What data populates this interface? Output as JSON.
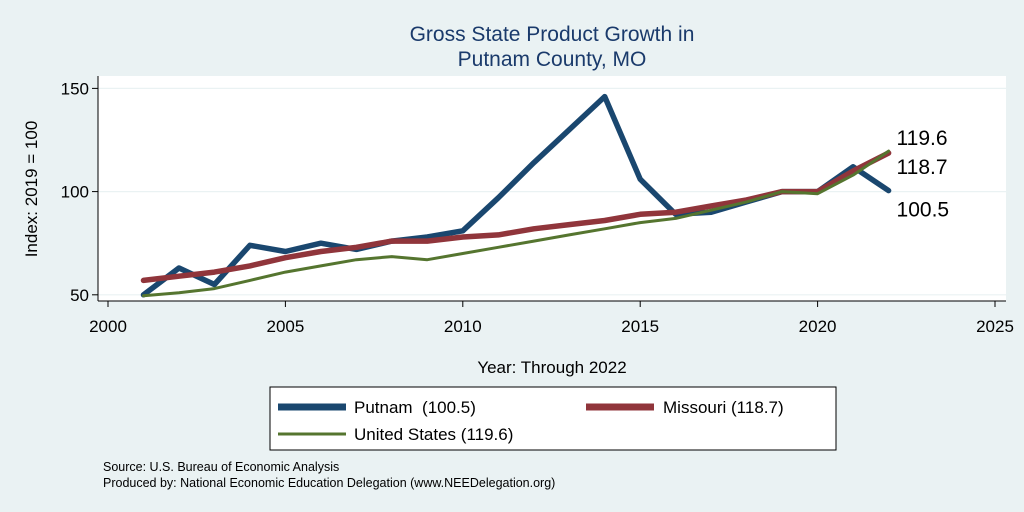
{
  "chart_data": {
    "type": "line",
    "title": "Gross State Product Growth in",
    "subtitle": "Putnam County, MO",
    "xlabel": "Year: Through 2022",
    "ylabel": "Index: 2019 = 100",
    "xlim": [
      2000,
      2025
    ],
    "ylim": [
      47,
      156
    ],
    "xticks": [
      2000,
      2005,
      2010,
      2015,
      2020,
      2025
    ],
    "yticks": [
      50,
      100,
      150
    ],
    "grid": true,
    "legend_position": "bottom",
    "x": [
      2001,
      2002,
      2003,
      2004,
      2005,
      2006,
      2007,
      2008,
      2009,
      2010,
      2011,
      2012,
      2013,
      2014,
      2015,
      2016,
      2017,
      2018,
      2019,
      2020,
      2021,
      2022
    ],
    "series": [
      {
        "name": "Putnam",
        "legend_label": "Putnam  (100.5)",
        "color": "#1a476f",
        "values": [
          50,
          63,
          55,
          74,
          71,
          75,
          72,
          76,
          78,
          81,
          97,
          114,
          130,
          146,
          106,
          89,
          90,
          95,
          100,
          100,
          112,
          100.5
        ],
        "end_label": "100.5"
      },
      {
        "name": "Missouri",
        "legend_label": "Missouri (118.7)",
        "color": "#90353b",
        "values": [
          57,
          59,
          61,
          64,
          68,
          71,
          73,
          76,
          76,
          78,
          79,
          82,
          84,
          86,
          89,
          90,
          93,
          96,
          100,
          100,
          110,
          118.7
        ],
        "end_label": "118.7"
      },
      {
        "name": "United States",
        "legend_label": "United States (119.6)",
        "color": "#55752f",
        "values": [
          49.5,
          51,
          53,
          57,
          61,
          64,
          67,
          68.5,
          67,
          70,
          73,
          76,
          79,
          82,
          85,
          87,
          91,
          95,
          100,
          99,
          108,
          119.6
        ],
        "end_label": "119.6"
      }
    ]
  },
  "notes": {
    "source": "Source: U.S. Bureau of Economic Analysis",
    "produced_by": "Produced by: National Economic Education Delegation (www.NEEDelegation.org)"
  }
}
